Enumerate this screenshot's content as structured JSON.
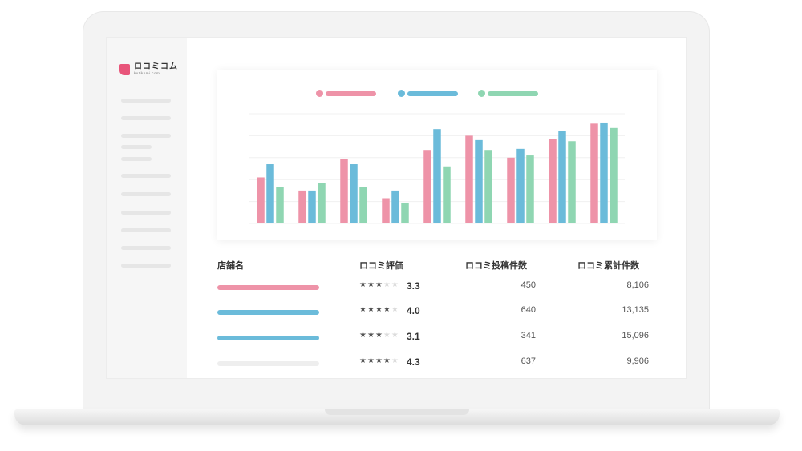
{
  "brand": {
    "name": "ロコミコム",
    "sub": "kutikomi.com",
    "color": "#e8557a"
  },
  "colors": {
    "pink": "#ee93a8",
    "blue": "#6bbbda",
    "green": "#8fd6b2",
    "gray": "#eeeeee"
  },
  "legend": [
    "pink",
    "blue",
    "green"
  ],
  "chart_data": {
    "type": "bar",
    "categories": [
      "",
      "",
      "",
      "",
      "",
      "",
      "",
      "",
      ""
    ],
    "series": [
      {
        "color": "#ee93a8",
        "values": [
          42,
          30,
          59,
          23,
          67,
          80,
          60,
          77,
          91
        ]
      },
      {
        "color": "#6bbbda",
        "values": [
          54,
          30,
          54,
          30,
          86,
          76,
          68,
          84,
          92
        ]
      },
      {
        "color": "#8fd6b2",
        "values": [
          33,
          37,
          33,
          19,
          52,
          67,
          62,
          75,
          87
        ]
      }
    ],
    "ylim": [
      0,
      100
    ],
    "grid": true
  },
  "table": {
    "headers": [
      "店舗名",
      "ロコミ評価",
      "ロコミ投稿件数",
      "ロコミ累計件数"
    ],
    "rows": [
      {
        "color": "#ee93a8",
        "stars": 3,
        "rating": "3.3",
        "posts": "450",
        "total": "8,106"
      },
      {
        "color": "#6bbbda",
        "stars": 4,
        "rating": "4.0",
        "posts": "640",
        "total": "13,135"
      },
      {
        "color": "#6bbbda",
        "stars": 3,
        "rating": "3.1",
        "posts": "341",
        "total": "15,096"
      },
      {
        "color": "#eeeeee",
        "stars": 4,
        "rating": "4.3",
        "posts": "637",
        "total": "9,906"
      }
    ]
  }
}
